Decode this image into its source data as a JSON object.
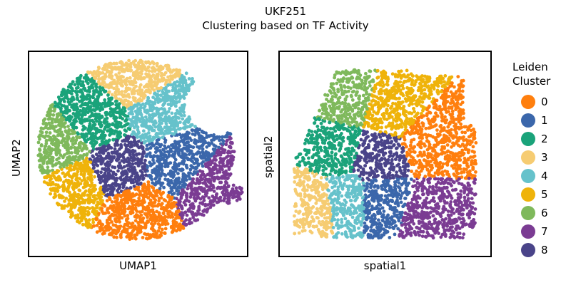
{
  "title": "UKF251",
  "subtitle": "Clustering based on TF Activity",
  "legend": {
    "title_line1": "Leiden",
    "title_line2": "Cluster",
    "items": [
      {
        "label": "0",
        "color": "#ff7f0e"
      },
      {
        "label": "1",
        "color": "#3b67ab"
      },
      {
        "label": "2",
        "color": "#1aa37a"
      },
      {
        "label": "3",
        "color": "#f6cc72"
      },
      {
        "label": "4",
        "color": "#66c2cb"
      },
      {
        "label": "5",
        "color": "#efb30a"
      },
      {
        "label": "6",
        "color": "#7fb95c"
      },
      {
        "label": "7",
        "color": "#7b3c93"
      },
      {
        "label": "8",
        "color": "#4a4489"
      }
    ]
  },
  "chart_data": [
    {
      "type": "scatter",
      "xlabel": "UMAP1",
      "ylabel": "UMAP2",
      "xlim": [
        0,
        10
      ],
      "ylim": [
        0,
        10
      ],
      "ticks": "none",
      "grid": false,
      "legend": "right",
      "cluster_centers": [
        {
          "cluster": "0",
          "x": 5.0,
          "y": 2.0
        },
        {
          "cluster": "1",
          "x": 6.8,
          "y": 4.6
        },
        {
          "cluster": "2",
          "x": 3.0,
          "y": 6.7
        },
        {
          "cluster": "3",
          "x": 5.0,
          "y": 8.7
        },
        {
          "cluster": "4",
          "x": 6.0,
          "y": 7.2
        },
        {
          "cluster": "5",
          "x": 2.0,
          "y": 3.5
        },
        {
          "cluster": "6",
          "x": 1.2,
          "y": 5.3
        },
        {
          "cluster": "7",
          "x": 8.6,
          "y": 3.1
        },
        {
          "cluster": "8",
          "x": 4.0,
          "y": 4.3
        }
      ]
    },
    {
      "type": "scatter",
      "xlabel": "spatial1",
      "ylabel": "spatial2",
      "xlim": [
        0,
        10
      ],
      "ylim": [
        0,
        10
      ],
      "ticks": "none",
      "grid": false,
      "cluster_centers": [
        {
          "cluster": "0",
          "x": 7.3,
          "y": 5.5
        },
        {
          "cluster": "1",
          "x": 4.8,
          "y": 2.6
        },
        {
          "cluster": "2",
          "x": 2.6,
          "y": 5.3
        },
        {
          "cluster": "3",
          "x": 1.4,
          "y": 2.4
        },
        {
          "cluster": "4",
          "x": 3.1,
          "y": 2.6
        },
        {
          "cluster": "5",
          "x": 5.2,
          "y": 7.3
        },
        {
          "cluster": "6",
          "x": 3.2,
          "y": 7.8
        },
        {
          "cluster": "7",
          "x": 7.3,
          "y": 2.0
        },
        {
          "cluster": "8",
          "x": 4.6,
          "y": 4.8
        }
      ]
    }
  ]
}
